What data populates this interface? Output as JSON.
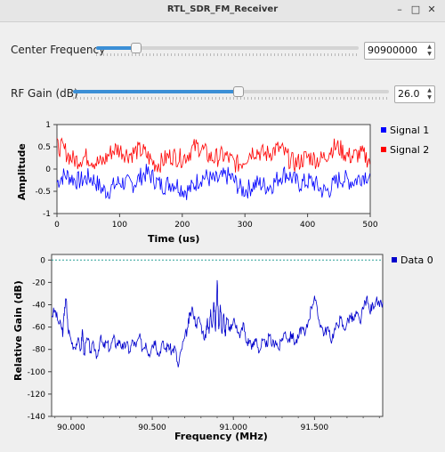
{
  "window": {
    "title": "RTL_SDR_FM_Receiver"
  },
  "controls": {
    "center_frequency": {
      "label": "Center Frequency",
      "value": "90900000",
      "slider_fraction": 0.15
    },
    "rf_gain": {
      "label": "RF Gain (dB)",
      "value": "26.0",
      "slider_fraction": 0.52
    }
  },
  "chart_data": [
    {
      "type": "line",
      "title": "",
      "xlabel": "Time (us)",
      "ylabel": "Amplitude",
      "xlim": [
        0,
        500
      ],
      "ylim": [
        -1,
        1
      ],
      "xticks": [
        "0",
        "100",
        "200",
        "300",
        "400",
        "500"
      ],
      "yticks": [
        "-1",
        "-0.5",
        "0",
        "0.5",
        "1"
      ],
      "legend_position": "right",
      "series": [
        {
          "name": "Signal 1",
          "color": "#0000ff",
          "mean": -0.3,
          "noise": 0.22
        },
        {
          "name": "Signal 2",
          "color": "#ff0000",
          "mean": 0.3,
          "noise": 0.22
        }
      ]
    },
    {
      "type": "line",
      "title": "",
      "xlabel": "Frequency (MHz)",
      "ylabel": "Relative Gain (dB)",
      "xlim": [
        89.88,
        91.92
      ],
      "ylim": [
        -140,
        5
      ],
      "xticks": [
        "90.000",
        "90.500",
        "91.000",
        "91.500"
      ],
      "yticks": [
        "0",
        "-20",
        "-40",
        "-60",
        "-80",
        "-100",
        "-120",
        "-140"
      ],
      "reference_line": {
        "y": 0,
        "color": "#2aa198"
      },
      "legend_position": "right",
      "series": [
        {
          "name": "Data 0",
          "color": "#0000cc",
          "points": [
            [
              89.88,
              -50
            ],
            [
              89.9,
              -45
            ],
            [
              89.92,
              -55
            ],
            [
              89.94,
              -60
            ],
            [
              89.95,
              -65
            ],
            [
              89.96,
              -42
            ],
            [
              89.97,
              -35
            ],
            [
              89.98,
              -60
            ],
            [
              90.0,
              -72
            ],
            [
              90.02,
              -78
            ],
            [
              90.04,
              -72
            ],
            [
              90.06,
              -80
            ],
            [
              90.07,
              -62
            ],
            [
              90.08,
              -84
            ],
            [
              90.1,
              -70
            ],
            [
              90.12,
              -82
            ],
            [
              90.14,
              -76
            ],
            [
              90.16,
              -86
            ],
            [
              90.18,
              -70
            ],
            [
              90.2,
              -78
            ],
            [
              90.22,
              -74
            ],
            [
              90.24,
              -80
            ],
            [
              90.26,
              -70
            ],
            [
              90.28,
              -76
            ],
            [
              90.3,
              -72
            ],
            [
              90.32,
              -80
            ],
            [
              90.34,
              -74
            ],
            [
              90.36,
              -82
            ],
            [
              90.38,
              -72
            ],
            [
              90.4,
              -78
            ],
            [
              90.42,
              -68
            ],
            [
              90.44,
              -80
            ],
            [
              90.46,
              -74
            ],
            [
              90.48,
              -84
            ],
            [
              90.5,
              -76
            ],
            [
              90.52,
              -72
            ],
            [
              90.54,
              -86
            ],
            [
              90.56,
              -74
            ],
            [
              90.58,
              -80
            ],
            [
              90.6,
              -76
            ],
            [
              90.62,
              -82
            ],
            [
              90.64,
              -78
            ],
            [
              90.66,
              -96
            ],
            [
              90.68,
              -80
            ],
            [
              90.7,
              -70
            ],
            [
              90.72,
              -60
            ],
            [
              90.73,
              -50
            ],
            [
              90.75,
              -44
            ],
            [
              90.77,
              -58
            ],
            [
              90.79,
              -52
            ],
            [
              90.81,
              -64
            ],
            [
              90.83,
              -70
            ],
            [
              90.84,
              -52
            ],
            [
              90.85,
              -66
            ],
            [
              90.86,
              -44
            ],
            [
              90.87,
              -60
            ],
            [
              90.88,
              -38
            ],
            [
              90.89,
              -64
            ],
            [
              90.9,
              -18
            ],
            [
              90.91,
              -62
            ],
            [
              90.92,
              -40
            ],
            [
              90.93,
              -66
            ],
            [
              90.94,
              -48
            ],
            [
              90.95,
              -68
            ],
            [
              90.96,
              -52
            ],
            [
              90.98,
              -64
            ],
            [
              91.0,
              -54
            ],
            [
              91.02,
              -58
            ],
            [
              91.04,
              -70
            ],
            [
              91.06,
              -56
            ],
            [
              91.08,
              -74
            ],
            [
              91.1,
              -72
            ],
            [
              91.12,
              -78
            ],
            [
              91.14,
              -70
            ],
            [
              91.16,
              -82
            ],
            [
              91.18,
              -72
            ],
            [
              91.2,
              -78
            ],
            [
              91.22,
              -68
            ],
            [
              91.24,
              -76
            ],
            [
              91.26,
              -72
            ],
            [
              91.28,
              -80
            ],
            [
              91.3,
              -70
            ],
            [
              91.32,
              -64
            ],
            [
              91.34,
              -72
            ],
            [
              91.36,
              -66
            ],
            [
              91.38,
              -74
            ],
            [
              91.4,
              -70
            ],
            [
              91.42,
              -60
            ],
            [
              91.44,
              -68
            ],
            [
              91.46,
              -56
            ],
            [
              91.48,
              -42
            ],
            [
              91.5,
              -32
            ],
            [
              91.52,
              -50
            ],
            [
              91.54,
              -58
            ],
            [
              91.56,
              -66
            ],
            [
              91.58,
              -60
            ],
            [
              91.6,
              -72
            ],
            [
              91.62,
              -64
            ],
            [
              91.64,
              -58
            ],
            [
              91.66,
              -52
            ],
            [
              91.68,
              -62
            ],
            [
              91.7,
              -56
            ],
            [
              91.72,
              -50
            ],
            [
              91.74,
              -54
            ],
            [
              91.76,
              -48
            ],
            [
              91.78,
              -56
            ],
            [
              91.8,
              -44
            ],
            [
              91.82,
              -34
            ],
            [
              91.84,
              -46
            ],
            [
              91.86,
              -40
            ],
            [
              91.88,
              -36
            ],
            [
              91.9,
              -42
            ],
            [
              91.92,
              -38
            ]
          ]
        }
      ]
    }
  ]
}
